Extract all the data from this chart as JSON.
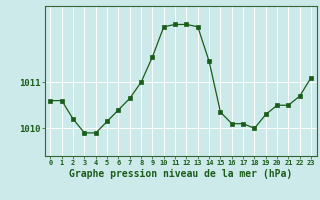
{
  "hours": [
    0,
    1,
    2,
    3,
    4,
    5,
    6,
    7,
    8,
    9,
    10,
    11,
    12,
    13,
    14,
    15,
    16,
    17,
    18,
    19,
    20,
    21,
    22,
    23
  ],
  "pressure": [
    1010.6,
    1010.6,
    1010.2,
    1009.9,
    1009.9,
    1010.15,
    1010.4,
    1010.65,
    1011.0,
    1011.55,
    1012.2,
    1012.25,
    1012.25,
    1012.2,
    1011.45,
    1010.35,
    1010.1,
    1010.1,
    1010.0,
    1010.3,
    1010.5,
    1010.5,
    1010.7,
    1011.1
  ],
  "line_color": "#1a5c1a",
  "marker": "s",
  "marker_size": 2.5,
  "bg_color": "#cceaea",
  "grid_color": "#ffffff",
  "xlabel": "Graphe pression niveau de la mer (hPa)",
  "ylim": [
    1009.4,
    1012.65
  ],
  "ytick_values": [
    1010,
    1011
  ],
  "tick_label_color": "#1a5c1a",
  "axis_color": "#336633",
  "xlabel_fontsize": 7.0,
  "xlabel_fontweight": "bold",
  "xtick_fontsize": 5.0,
  "ytick_fontsize": 6.5
}
